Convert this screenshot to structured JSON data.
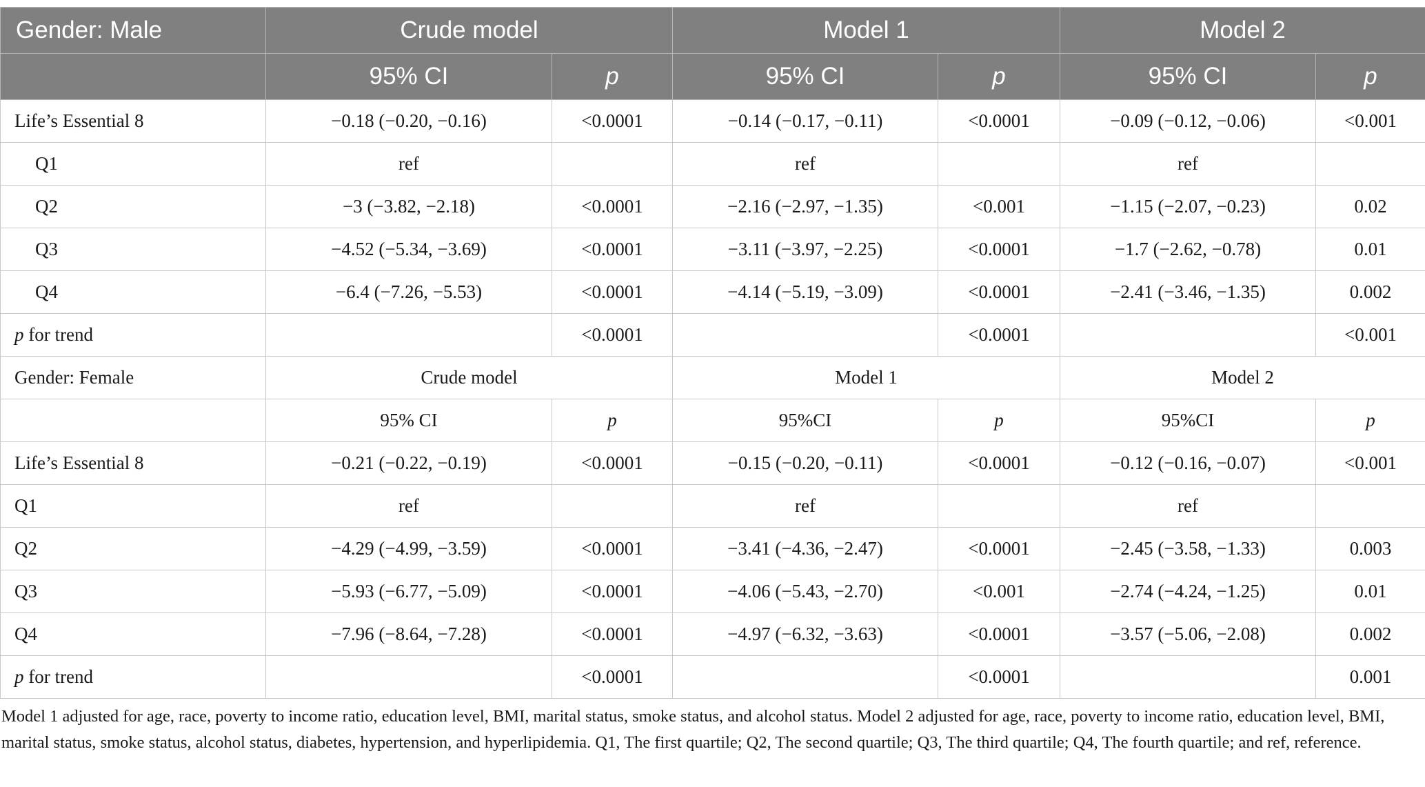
{
  "male_header": {
    "group_label": "Gender: Male",
    "models": [
      "Crude model",
      "Model 1",
      "Model 2"
    ],
    "ci_labels": [
      "95% CI",
      "95% CI",
      "95% CI"
    ],
    "p_label": "p"
  },
  "male_rows": [
    {
      "label": "Life’s Essential 8",
      "indent": false,
      "cells": [
        "−0.18 (−0.20, −0.16)",
        "<0.0001",
        "−0.14 (−0.17, −0.11)",
        "<0.0001",
        "−0.09 (−0.12, −0.06)",
        "<0.001"
      ]
    },
    {
      "label": "Q1",
      "indent": true,
      "cells": [
        "ref",
        "",
        "ref",
        "",
        "ref",
        ""
      ]
    },
    {
      "label": "Q2",
      "indent": true,
      "cells": [
        "−3 (−3.82, −2.18)",
        "<0.0001",
        "−2.16 (−2.97, −1.35)",
        "<0.001",
        "−1.15 (−2.07, −0.23)",
        "0.02"
      ]
    },
    {
      "label": "Q3",
      "indent": true,
      "cells": [
        "−4.52 (−5.34, −3.69)",
        "<0.0001",
        "−3.11 (−3.97, −2.25)",
        "<0.0001",
        "−1.7 (−2.62, −0.78)",
        "0.01"
      ]
    },
    {
      "label": "Q4",
      "indent": true,
      "cells": [
        "−6.4 (−7.26, −5.53)",
        "<0.0001",
        "−4.14 (−5.19, −3.09)",
        "<0.0001",
        "−2.41 (−3.46, −1.35)",
        "0.002"
      ]
    },
    {
      "label_italic": "p",
      "label_rest": " for trend",
      "indent": false,
      "cells": [
        "",
        "<0.0001",
        "",
        "<0.0001",
        "",
        "<0.001"
      ]
    }
  ],
  "female_header": {
    "group_label": "Gender: Female",
    "models": [
      "Crude model",
      "Model 1",
      "Model 2"
    ],
    "ci_labels": [
      "95% CI",
      "95%CI",
      "95%CI"
    ],
    "p_label": "p"
  },
  "female_rows": [
    {
      "label": "Life’s Essential 8",
      "indent": false,
      "cells": [
        "−0.21 (−0.22, −0.19)",
        "<0.0001",
        "−0.15 (−0.20, −0.11)",
        "<0.0001",
        "−0.12 (−0.16, −0.07)",
        "<0.001"
      ]
    },
    {
      "label": "Q1",
      "indent": false,
      "cells": [
        "ref",
        "",
        "ref",
        "",
        "ref",
        ""
      ]
    },
    {
      "label": "Q2",
      "indent": false,
      "cells": [
        "−4.29 (−4.99, −3.59)",
        "<0.0001",
        "−3.41 (−4.36, −2.47)",
        "<0.0001",
        "−2.45 (−3.58, −1.33)",
        "0.003"
      ]
    },
    {
      "label": "Q3",
      "indent": false,
      "cells": [
        "−5.93 (−6.77, −5.09)",
        "<0.0001",
        "−4.06 (−5.43, −2.70)",
        "<0.001",
        "−2.74 (−4.24, −1.25)",
        "0.01"
      ]
    },
    {
      "label": "Q4",
      "indent": false,
      "cells": [
        "−7.96 (−8.64, −7.28)",
        "<0.0001",
        "−4.97 (−6.32, −3.63)",
        "<0.0001",
        "−3.57 (−5.06, −2.08)",
        "0.002"
      ]
    },
    {
      "label_italic": "p",
      "label_rest": " for trend",
      "indent": false,
      "cells": [
        "",
        "<0.0001",
        "",
        "<0.0001",
        "",
        "0.001"
      ]
    }
  ],
  "footnote": "Model 1 adjusted for age, race, poverty to income ratio, education level, BMI, marital status, smoke status, and alcohol status. Model 2 adjusted for age, race, poverty to income ratio, education level, BMI, marital status, smoke status, alcohol status, diabetes, hypertension, and hyperlipidemia. Q1, The first quartile; Q2, The second quartile; Q3, The third quartile; Q4, The fourth quartile; and ref, reference."
}
